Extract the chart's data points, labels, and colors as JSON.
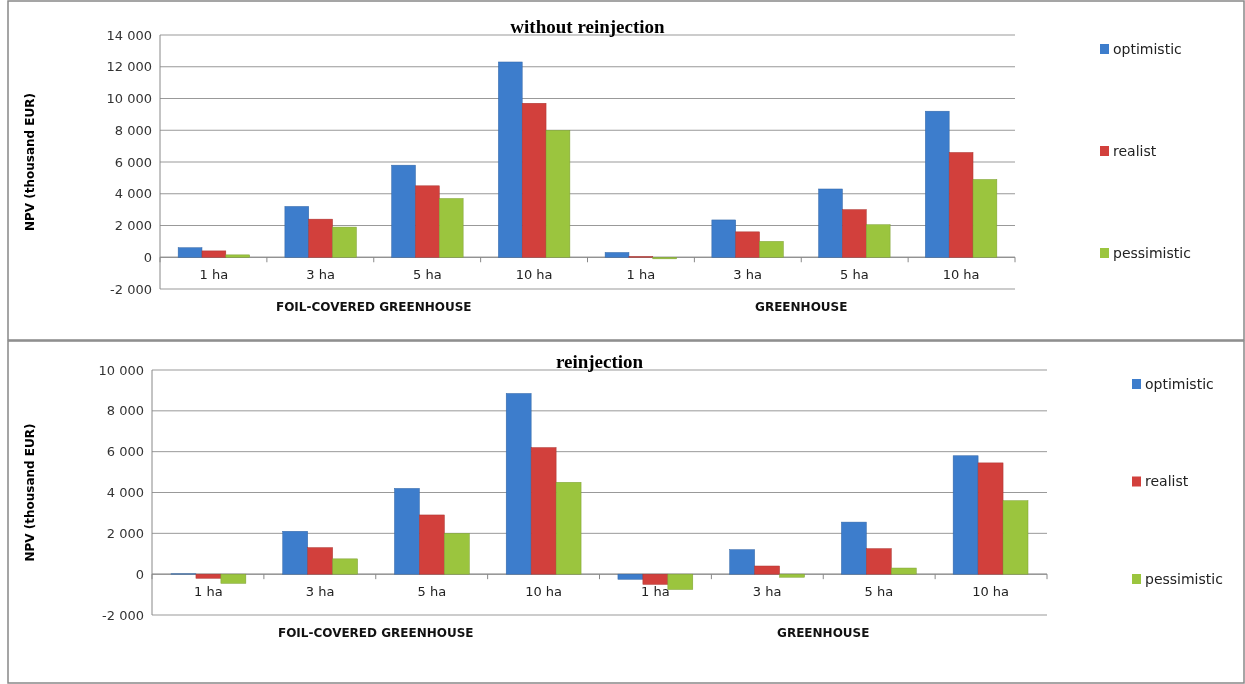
{
  "chart_data": [
    {
      "type": "bar",
      "title": "without reinjection",
      "ylabel": "NPV (thousand  EUR)",
      "categories": [
        "1 ha",
        "3 ha",
        "5 ha",
        "10 ha",
        "1 ha",
        "3 ha",
        "5 ha",
        "10 ha"
      ],
      "series": [
        {
          "name": "optimistic",
          "color": "#3d7dcc",
          "values": [
            600,
            3200,
            5800,
            12300,
            300,
            2350,
            4300,
            9200
          ]
        },
        {
          "name": "realist",
          "color": "#d2403c",
          "values": [
            400,
            2400,
            4500,
            9700,
            50,
            1600,
            3000,
            6600
          ]
        },
        {
          "name": "pessimistic",
          "color": "#9bc53e",
          "values": [
            150,
            1900,
            3700,
            8000,
            -100,
            1000,
            2050,
            4900
          ]
        }
      ],
      "ylim": [
        -2000,
        14000
      ],
      "yticks": [
        {
          "value": -2000,
          "label": "-2 000"
        },
        0,
        {
          "value": 2000,
          "label": "2 000"
        },
        {
          "value": 4000,
          "label": "4 000"
        },
        {
          "value": 6000,
          "label": "6 000"
        },
        {
          "value": 8000,
          "label": "8 000"
        },
        {
          "value": 10000,
          "label": "10 000"
        },
        {
          "value": 12000,
          "label": "12 000"
        },
        {
          "value": 14000,
          "label": "14 000"
        }
      ],
      "grid": "y",
      "legend": "right",
      "annotations": [
        "FOIL-COVERED GREENHOUSE",
        "GREENHOUSE"
      ]
    },
    {
      "type": "bar",
      "title": "reinjection",
      "ylabel": "NPV (thousand EUR)",
      "categories": [
        "1 ha",
        "3 ha",
        "5 ha",
        "10 ha",
        "1 ha",
        "3 ha",
        "5 ha",
        "10 ha"
      ],
      "series": [
        {
          "name": "optimistic",
          "color": "#3d7dcc",
          "values": [
            20,
            2100,
            4200,
            8850,
            -250,
            1200,
            2550,
            5800
          ]
        },
        {
          "name": "realist",
          "color": "#d2403c",
          "values": [
            -200,
            1300,
            2900,
            6200,
            -500,
            400,
            1250,
            5450
          ]
        },
        {
          "name": "pessimistic",
          "color": "#9bc53e",
          "values": [
            -450,
            750,
            2000,
            4500,
            -750,
            -150,
            300,
            3600
          ]
        }
      ],
      "ylim": [
        -2000,
        10000
      ],
      "yticks": [
        {
          "value": -2000,
          "label": "-2 000"
        },
        0,
        {
          "value": 2000,
          "label": "2 000"
        },
        {
          "value": 4000,
          "label": "4 000"
        },
        {
          "value": 6000,
          "label": "6 000"
        },
        {
          "value": 8000,
          "label": "8 000"
        },
        {
          "value": 10000,
          "label": "10 000"
        }
      ],
      "grid": "y",
      "legend": "right",
      "annotations": [
        "FOIL-COVERED GREENHOUSE",
        "GREENHOUSE"
      ]
    }
  ]
}
